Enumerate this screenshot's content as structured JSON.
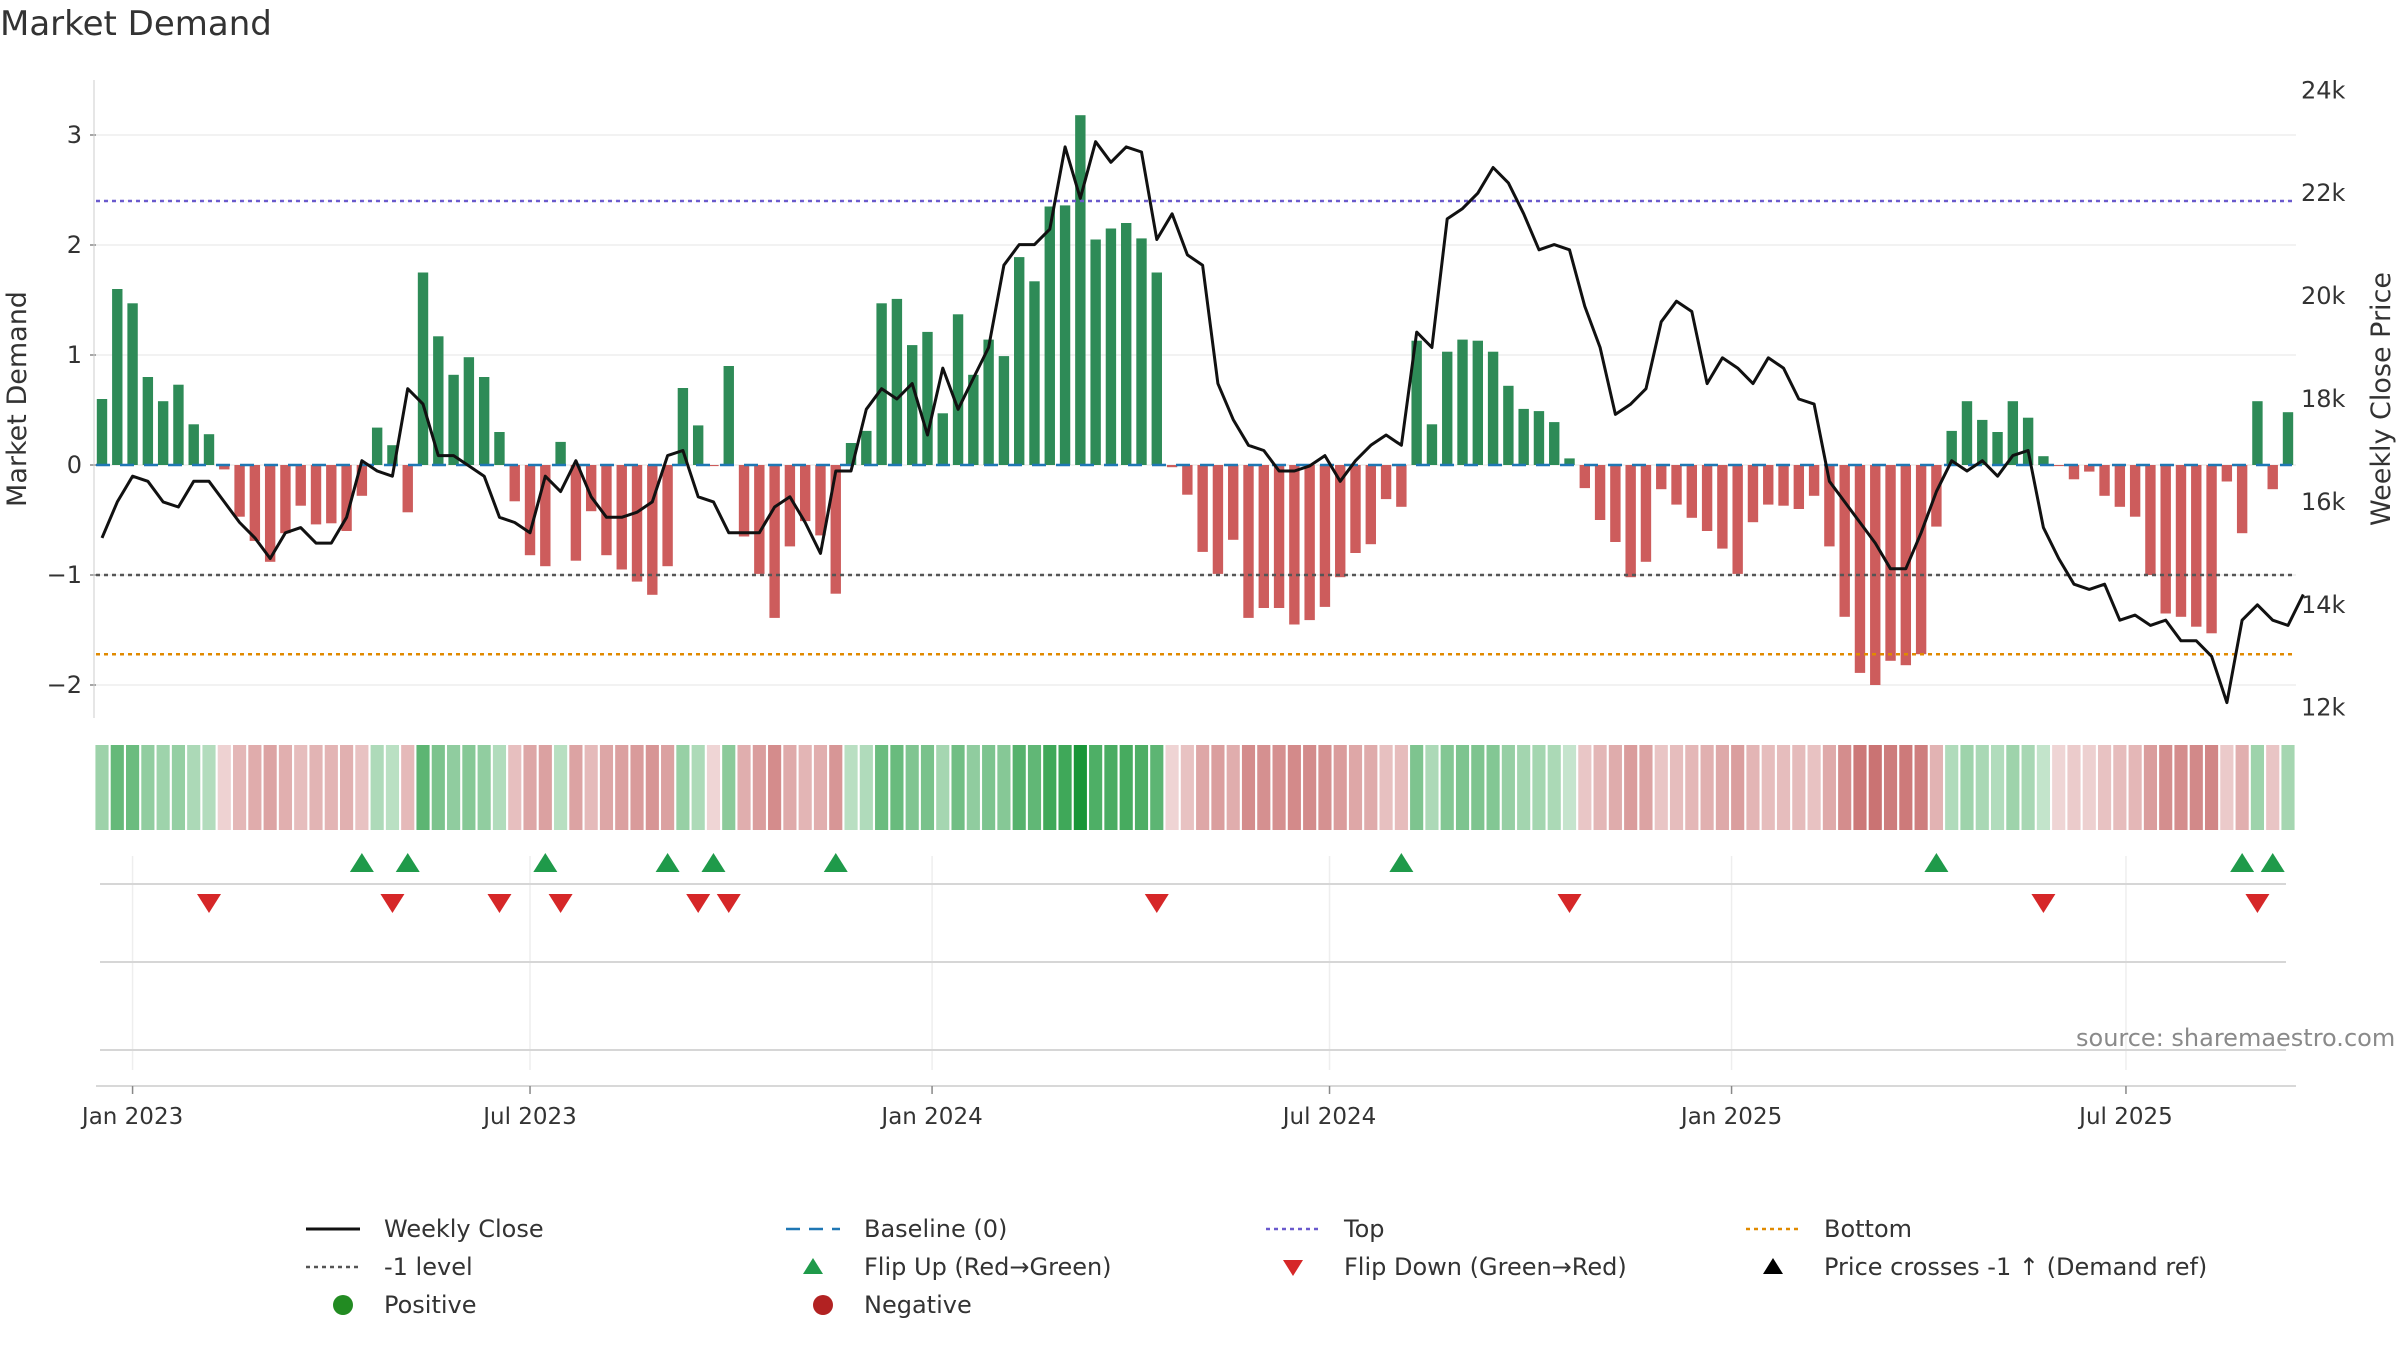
{
  "title": "Market Demand",
  "source_note": "source: sharemaestro.com",
  "colors": {
    "positive_bar": "#2e8b57",
    "negative_bar": "#cd5c5c",
    "price_line": "#111111",
    "baseline": "#1f77b4",
    "top": "#6a5acd",
    "neg_one": "#555555",
    "bottom": "#e08a00",
    "flip_up": "#1f9a4a",
    "flip_down": "#d62728",
    "grid": "#e6e6e6"
  },
  "legend": {
    "weekly_close": "Weekly Close",
    "baseline": "Baseline (0)",
    "top": "Top",
    "bottom": "Bottom",
    "neg_one": "-1 level",
    "flip_up": "Flip Up (Red→Green)",
    "flip_down": "Flip Down (Green→Red)",
    "price_cross": "Price crosses -1 ↑ (Demand ref)",
    "positive": "Positive",
    "negative": "Negative"
  },
  "chart_data": {
    "type": "bar",
    "title": "Market Demand",
    "ylabel": "Market Demand",
    "y2label": "Weekly Close Price",
    "ylim": [
      -2.3,
      3.5
    ],
    "y2lim": [
      11800,
      24200
    ],
    "yticks": [
      -2,
      -1,
      0,
      1,
      2,
      3
    ],
    "y2ticks": [
      12000,
      14000,
      16000,
      18000,
      20000,
      22000,
      24000
    ],
    "y2ticklabels": [
      "12k",
      "14k",
      "16k",
      "18k",
      "20k",
      "22k",
      "24k"
    ],
    "x_start_week": -2,
    "xticks": [
      {
        "week": 0,
        "label": "Jan 2023"
      },
      {
        "week": 26,
        "label": "Jul 2023"
      },
      {
        "week": 52.3,
        "label": "Jan 2024"
      },
      {
        "week": 78.3,
        "label": "Jul 2024"
      },
      {
        "week": 104.6,
        "label": "Jan 2025"
      },
      {
        "week": 130.4,
        "label": "Jul 2025"
      }
    ],
    "reference_lines": {
      "baseline": 0,
      "top": 2.4,
      "neg_one": -1,
      "bottom": -1.72
    },
    "demand": [
      0.6,
      1.6,
      1.47,
      0.8,
      0.58,
      0.73,
      0.37,
      0.28,
      -0.04,
      -0.47,
      -0.69,
      -0.88,
      -0.62,
      -0.37,
      -0.54,
      -0.53,
      -0.6,
      -0.28,
      0.34,
      0.18,
      -0.43,
      1.75,
      1.17,
      0.82,
      0.98,
      0.8,
      0.3,
      -0.33,
      -0.82,
      -0.92,
      0.21,
      -0.87,
      -0.42,
      -0.82,
      -0.95,
      -1.06,
      -1.18,
      -0.92,
      0.7,
      0.36,
      -0.01,
      0.9,
      -0.65,
      -0.99,
      -1.39,
      -0.74,
      -0.51,
      -0.64,
      -1.17,
      0.2,
      0.31,
      1.47,
      1.51,
      1.09,
      1.21,
      0.47,
      1.37,
      0.82,
      1.14,
      0.99,
      1.89,
      1.67,
      2.35,
      2.36,
      3.18,
      2.05,
      2.15,
      2.2,
      2.06,
      1.75,
      -0.02,
      -0.27,
      -0.79,
      -0.99,
      -0.68,
      -1.39,
      -1.3,
      -1.3,
      -1.45,
      -1.41,
      -1.29,
      -1.02,
      -0.8,
      -0.72,
      -0.31,
      -0.38,
      1.13,
      0.37,
      1.03,
      1.14,
      1.13,
      1.03,
      0.72,
      0.51,
      0.49,
      0.39,
      0.06,
      -0.21,
      -0.5,
      -0.7,
      -1.02,
      -0.88,
      -0.22,
      -0.36,
      -0.48,
      -0.6,
      -0.76,
      -0.99,
      -0.52,
      -0.36,
      -0.37,
      -0.4,
      -0.28,
      -0.74,
      -1.38,
      -1.89,
      -2.0,
      -1.78,
      -1.82,
      -1.72,
      -0.56,
      0.31,
      0.58,
      0.41,
      0.3,
      0.58,
      0.43,
      0.08,
      -0.01,
      -0.13,
      -0.06,
      -0.28,
      -0.38,
      -0.47,
      -1.0,
      -1.35,
      -1.38,
      -1.47,
      -1.53,
      -0.15,
      -0.62,
      0.58,
      -0.22,
      0.48
    ],
    "price": [
      15300,
      16000,
      16500,
      16400,
      16000,
      15900,
      16400,
      16400,
      16000,
      15600,
      15300,
      14900,
      15400,
      15500,
      15200,
      15200,
      15700,
      16800,
      16600,
      16500,
      18200,
      17900,
      16900,
      16900,
      16700,
      16500,
      15700,
      15600,
      15400,
      16500,
      16200,
      16800,
      16100,
      15700,
      15700,
      15800,
      16000,
      16900,
      17000,
      16100,
      16000,
      15400,
      15400,
      15400,
      15900,
      16100,
      15600,
      15000,
      16600,
      16600,
      17800,
      18200,
      18000,
      18300,
      17300,
      18600,
      17800,
      18400,
      19000,
      20600,
      21000,
      21000,
      21300,
      22900,
      21900,
      23000,
      22600,
      22900,
      22800,
      21100,
      21600,
      20800,
      20600,
      18300,
      17600,
      17100,
      17000,
      16600,
      16600,
      16700,
      16900,
      16400,
      16800,
      17100,
      17300,
      17100,
      19300,
      19000,
      21500,
      21700,
      22000,
      22500,
      22200,
      21600,
      20900,
      21000,
      20900,
      19800,
      19000,
      17700,
      17900,
      18200,
      19500,
      19900,
      19700,
      18300,
      18800,
      18600,
      18300,
      18800,
      18600,
      18000,
      17900,
      16400,
      16000,
      15600,
      15200,
      14700,
      14700,
      15400,
      16200,
      16800,
      16600,
      16800,
      16500,
      16900,
      17000,
      15500,
      14900,
      14400,
      14300,
      14400,
      13700,
      13800,
      13600,
      13700,
      13300,
      13300,
      13000,
      12100,
      13700,
      14000,
      13700,
      13600,
      14200
    ],
    "heat_labels": [
      "Positive",
      "Negative"
    ],
    "flip_up_weeks": [
      15,
      18,
      27,
      35,
      38,
      46,
      83,
      118,
      138,
      140
    ],
    "flip_down_weeks": [
      5,
      17,
      24,
      28,
      37,
      39,
      67,
      94,
      125,
      139
    ],
    "price_cross_weeks": []
  }
}
